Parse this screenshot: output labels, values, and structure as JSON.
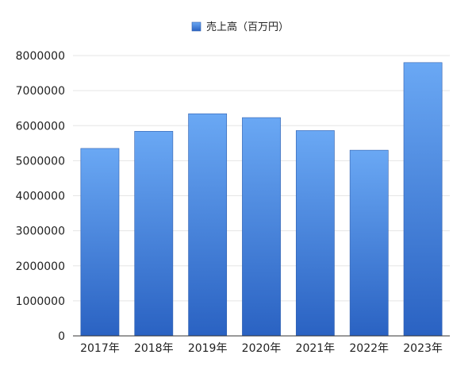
{
  "chart_data": {
    "type": "bar",
    "categories": [
      "2017年",
      "2018年",
      "2019年",
      "2020年",
      "2021年",
      "2022年",
      "2023年"
    ],
    "series": [
      {
        "name": "売上高（百万円）",
        "values": [
          5350000,
          5840000,
          6340000,
          6230000,
          5860000,
          5300000,
          7800000
        ]
      }
    ],
    "ylim": [
      0,
      8000000
    ],
    "yticks": [
      0,
      1000000,
      2000000,
      3000000,
      4000000,
      5000000,
      6000000,
      7000000,
      8000000
    ],
    "grid": true,
    "legend_position": "top-center",
    "colors": {
      "bar_top": "#6aa8f4",
      "bar_bottom": "#2a62c2",
      "grid": "#e5e5e5",
      "axis": "#333333",
      "text": "#222222"
    }
  }
}
